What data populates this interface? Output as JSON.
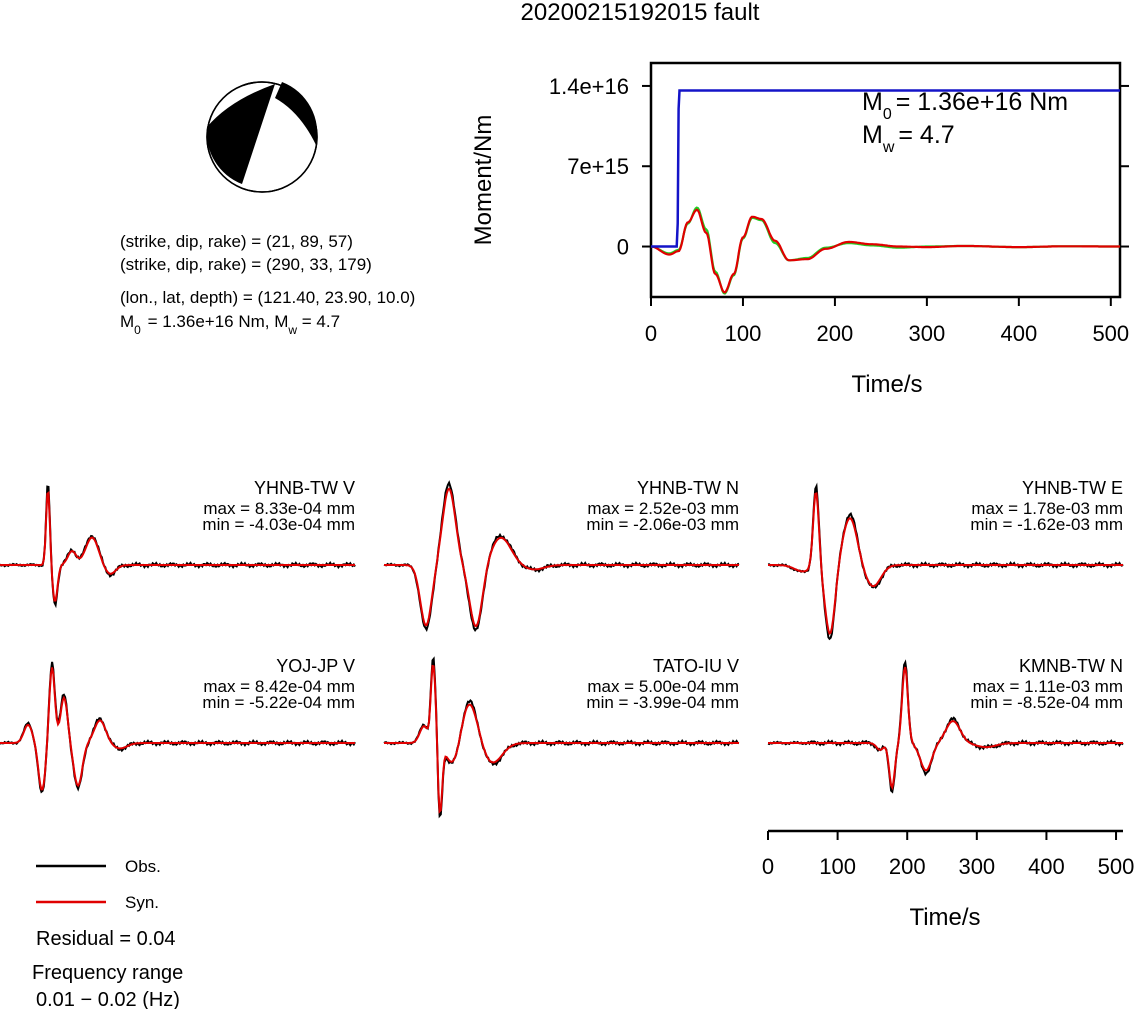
{
  "title": "20200215192015 fault",
  "mechanism": {
    "strike1": 21,
    "dip1": 89,
    "rake1": 57,
    "line1": "(strike, dip, rake) = (21, 89, 57)",
    "line2": "(strike, dip, rake) = (290, 33, 179)",
    "line3": "(lon., lat, depth) = (121.40, 23.90, 10.0)",
    "m0_text": "1.36e+16 Nm",
    "mw_label": ", M",
    "mw_text": " = 4.7"
  },
  "moment_panel": {
    "m0_value": "= 1.36e+16 Nm",
    "mw_value": "= 4.7",
    "ylabel": "Moment/Nm",
    "xlabel": "Time/s"
  },
  "chart_data": [
    {
      "type": "line",
      "name": "moment-function",
      "ylabel": "Moment/Nm",
      "xlabel": "Time/s",
      "xlim": [
        0,
        510
      ],
      "ylim": [
        -4400000000000000.0,
        1.6e+16
      ],
      "yticks": [
        0,
        7000000000000000.0,
        1.4e+16
      ],
      "ytick_labels": [
        "0",
        "7e+15",
        "1.4e+16"
      ],
      "xticks": [
        0,
        100,
        200,
        300,
        400,
        500
      ],
      "series": [
        {
          "color": "#1414c8",
          "x": [
            0,
            28,
            29,
            30,
            31,
            510
          ],
          "y": [
            0,
            0,
            2000000000000000.0,
            1.2e+16,
            1.36e+16,
            1.36e+16
          ]
        }
      ],
      "moment_rate_overlay": {
        "x": [
          0,
          20,
          30,
          40,
          50,
          60,
          70,
          80,
          90,
          100,
          110,
          120,
          135,
          150,
          170,
          190,
          215,
          240,
          270,
          300,
          340,
          400,
          450,
          510
        ],
        "observed_green": [
          0,
          -600000000000000.0,
          -300000000000000.0,
          2000000000000000.0,
          3400000000000000.0,
          1500000000000000.0,
          -2200000000000000.0,
          -4100000000000000.0,
          -2500000000000000.0,
          700000000000000.0,
          2500000000000000.0,
          2300000000000000.0,
          300000000000000.0,
          -1200000000000000.0,
          -1000000000000000.0,
          -100000000000000.0,
          300000000000000.0,
          100000000000000.0,
          -100000000000000.0,
          0,
          50000000000000.0,
          -50000000000000.0,
          20000000000000.0,
          0
        ],
        "synthetic_red": [
          0,
          -700000000000000.0,
          -400000000000000.0,
          2100000000000000.0,
          3200000000000000.0,
          1200000000000000.0,
          -2400000000000000.0,
          -4000000000000000.0,
          -2400000000000000.0,
          800000000000000.0,
          2600000000000000.0,
          2400000000000000.0,
          500000000000000.0,
          -1200000000000000.0,
          -1100000000000000.0,
          -200000000000000.0,
          400000000000000.0,
          200000000000000.0,
          0,
          -50000000000000.0,
          50000000000000.0,
          -50000000000000.0,
          20000000000000.0,
          0
        ]
      }
    },
    {
      "type": "line",
      "name": "waveforms",
      "xlabel": "Time/s",
      "xlim": [
        0,
        510
      ],
      "xticks": [
        0,
        100,
        200,
        300,
        400,
        500
      ],
      "series_names": [
        "Obs.",
        "Syn."
      ],
      "stations": [
        {
          "label": "YHNB-TW V",
          "max": "max = 8.33e-04 mm",
          "min": "min = -4.03e-04 mm",
          "maxv": 0.000833,
          "minv": -0.000403,
          "events": [
            [
              48,
              8.33,
              2.6
            ],
            [
              55,
              -4.0,
              3.5
            ],
            [
              72,
              1.5,
              6
            ],
            [
              92,
              3.0,
              9
            ],
            [
              110,
              -1.0,
              8
            ]
          ]
        },
        {
          "label": "YHNB-TW N",
          "max": "max = 2.52e-03 mm",
          "min": "min = -2.06e-03 mm",
          "maxv": 0.00252,
          "minv": -0.00206,
          "events": [
            [
              65,
              25.2,
              9
            ],
            [
              42,
              -20.0,
              8
            ],
            [
              92,
              -20.6,
              9
            ],
            [
              117,
              9.0,
              14
            ],
            [
              150,
              -1.5,
              14
            ]
          ]
        },
        {
          "label": "YHNB-TW E",
          "max": "max = 1.78e-03 mm",
          "min": "min = -1.62e-03 mm",
          "maxv": 0.00178,
          "minv": -0.00162,
          "events": [
            [
              35,
              -1.5,
              12
            ],
            [
              48,
              17.8,
              4
            ],
            [
              62,
              -16.2,
              7
            ],
            [
              82,
              11.0,
              10
            ],
            [
              105,
              -5.0,
              11
            ]
          ]
        },
        {
          "label": "YOJ-JP V",
          "max": "max = 8.42e-04 mm",
          "min": "min = -5.22e-04 mm",
          "maxv": 0.000842,
          "minv": -0.000522,
          "events": [
            [
              28,
              2.0,
              6
            ],
            [
              42,
              -5.2,
              5
            ],
            [
              52,
              8.4,
              4
            ],
            [
              64,
              5.0,
              5
            ],
            [
              78,
              -4.7,
              6
            ],
            [
              100,
              2.5,
              8
            ],
            [
              120,
              -0.6,
              10
            ]
          ]
        },
        {
          "label": "TATO-IU V",
          "max": "max = 5.00e-04 mm",
          "min": "min = -3.99e-04 mm",
          "maxv": 0.0005,
          "minv": -0.000399,
          "events": [
            [
              40,
              1.0,
              6
            ],
            [
              49,
              4.5,
              3
            ],
            [
              52,
              1.0,
              2
            ],
            [
              56,
              -3.99,
              3
            ],
            [
              70,
              -1.5,
              10
            ],
            [
              85,
              2.5,
              12
            ],
            [
              108,
              -1.2,
              14
            ]
          ]
        },
        {
          "label": "KMNB-TW N",
          "max": "max = 1.11e-03 mm",
          "min": "min = -8.52e-04 mm",
          "maxv": 0.00111,
          "minv": -0.000852,
          "events": [
            [
              112,
              -1.0,
              5
            ],
            [
              124,
              -6.5,
              4
            ],
            [
              137,
              11.1,
              4
            ],
            [
              158,
              -4.0,
              8
            ],
            [
              185,
              3.2,
              10
            ],
            [
              218,
              -0.6,
              14
            ]
          ]
        }
      ]
    }
  ],
  "legend": {
    "obs_label": "Obs.",
    "syn_label": "Syn.",
    "obs_color": "#000000",
    "syn_color": "#e00000"
  },
  "footer": {
    "residual": "Residual = 0.04",
    "freq_title": "Frequency range",
    "freq_range": "0.01 − 0.02 (Hz)"
  },
  "colors": {
    "moment": "#1414c8",
    "obs": "#000000",
    "syn": "#e00000",
    "green": "#22cc22"
  }
}
